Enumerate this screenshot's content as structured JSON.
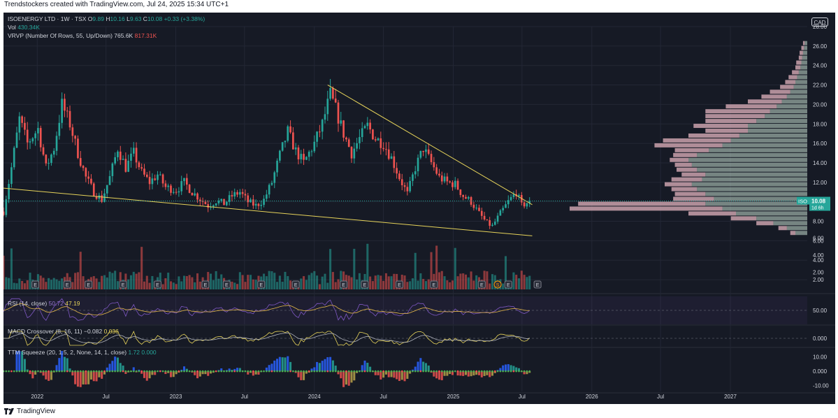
{
  "attribution": "Trendstockers created with TradingView.com, Jul 24, 2025 15:34 UTC+1",
  "footer": {
    "brand": "TradingView",
    "logo_icon": "tradingview-logo-icon"
  },
  "header": {
    "symbol": "ISOENERGY LTD · 1W · TSX",
    "open_label": "O",
    "open": "9.89",
    "high_label": "H",
    "high": "10.16",
    "low_label": "L",
    "low": "9.63",
    "close_label": "C",
    "close": "10.08",
    "change": "+0.33 (+3.38%)",
    "vol_label": "Vol",
    "vol": "430.34K",
    "vrvp_label": "VRVP (Number Of Rows, 55, Up/Down)",
    "vrvp_up": "765.6K",
    "vrvp_down": "817.31K",
    "rsi_label": "RSI (14, close)",
    "rsi_a": "50.72",
    "rsi_b": "47.19",
    "macd_label": "MACD Crossover (8, 16, 11)",
    "macd_a": "−0.082",
    "macd_b": "0.036",
    "ttm_label": "TTM Squeeze (20, 1.5, 2, None, 14, 1, close)",
    "ttm_a": "1.72",
    "ttm_b": "0.000"
  },
  "colors": {
    "background": "#161a25",
    "grid": "#232735",
    "up": "#26a69a",
    "down": "#ef5350",
    "trendline": "#e6d35a",
    "text": "#d1d4dc",
    "vp_up": "#c7dfd0",
    "vp_down": "#e3b4bf",
    "rsi": "#7e57c2",
    "rsi_ma": "#e6b94a",
    "macd": "#e6d35a",
    "macd_signal": "#b2b5be",
    "last_price": "#26a69a"
  },
  "currency": "CAD",
  "last_price": {
    "ticker": "ISO",
    "price": "10.08",
    "countdown": "1d 6h",
    "value": 10.08
  },
  "chart_data": {
    "type": "candlestick",
    "timeframe": "1W",
    "x_axis": {
      "range": [
        "2021-10-04",
        "2027-06-01"
      ],
      "ticks": [
        {
          "date": "2022-01-01",
          "label": "2022"
        },
        {
          "date": "2022-07-01",
          "label": "Jul"
        },
        {
          "date": "2023-01-01",
          "label": "2023"
        },
        {
          "date": "2023-07-01",
          "label": "Jul"
        },
        {
          "date": "2024-01-01",
          "label": "2024"
        },
        {
          "date": "2024-07-01",
          "label": "Jul"
        },
        {
          "date": "2025-01-01",
          "label": "2025"
        },
        {
          "date": "2025-07-01",
          "label": "Jul"
        },
        {
          "date": "2026-01-01",
          "label": "2026"
        },
        {
          "date": "2026-07-01",
          "label": "Jul"
        },
        {
          "date": "2027-01-01",
          "label": "2027"
        }
      ]
    },
    "price_axis": {
      "range": [
        1,
        28
      ],
      "ticks": [
        "2.00",
        "4.00",
        "6.00",
        "8.00",
        "10.00",
        "12.00",
        "14.00",
        "16.00",
        "18.00",
        "20.00",
        "22.00",
        "24.00",
        "26.00",
        "28.00"
      ]
    },
    "close_path": [
      [
        "2021-10-04",
        9.0
      ],
      [
        "2021-10-25",
        13.5
      ],
      [
        "2021-11-15",
        18.5
      ],
      [
        "2021-12-06",
        16.0
      ],
      [
        "2022-01-03",
        17.5
      ],
      [
        "2022-01-24",
        13.5
      ],
      [
        "2022-02-14",
        15.5
      ],
      [
        "2022-03-07",
        20.0
      ],
      [
        "2022-03-28",
        18.0
      ],
      [
        "2022-04-18",
        15.0
      ],
      [
        "2022-05-09",
        12.5
      ],
      [
        "2022-05-30",
        11.0
      ],
      [
        "2022-06-20",
        10.2
      ],
      [
        "2022-07-11",
        12.5
      ],
      [
        "2022-08-01",
        15.5
      ],
      [
        "2022-08-22",
        13.5
      ],
      [
        "2022-09-12",
        15.0
      ],
      [
        "2022-10-03",
        13.0
      ],
      [
        "2022-10-24",
        12.0
      ],
      [
        "2022-11-14",
        12.8
      ],
      [
        "2022-12-05",
        11.5
      ],
      [
        "2023-01-02",
        11.2
      ],
      [
        "2023-01-23",
        12.0
      ],
      [
        "2023-02-13",
        11.0
      ],
      [
        "2023-03-06",
        10.3
      ],
      [
        "2023-03-27",
        9.6
      ],
      [
        "2023-04-17",
        10.1
      ],
      [
        "2023-05-08",
        9.8
      ],
      [
        "2023-05-29",
        10.6
      ],
      [
        "2023-06-19",
        11.0
      ],
      [
        "2023-07-10",
        10.0
      ],
      [
        "2023-07-31",
        9.6
      ],
      [
        "2023-08-21",
        10.2
      ],
      [
        "2023-09-11",
        12.0
      ],
      [
        "2023-10-02",
        14.8
      ],
      [
        "2023-10-23",
        17.2
      ],
      [
        "2023-11-13",
        15.2
      ],
      [
        "2023-12-04",
        14.0
      ],
      [
        "2024-01-01",
        16.0
      ],
      [
        "2024-01-22",
        18.0
      ],
      [
        "2024-02-12",
        21.0
      ],
      [
        "2024-02-26",
        19.5
      ],
      [
        "2024-03-18",
        17.0
      ],
      [
        "2024-04-08",
        15.0
      ],
      [
        "2024-04-29",
        16.5
      ],
      [
        "2024-05-20",
        17.8
      ],
      [
        "2024-06-10",
        16.5
      ],
      [
        "2024-07-01",
        16.0
      ],
      [
        "2024-07-22",
        14.5
      ],
      [
        "2024-08-12",
        12.5
      ],
      [
        "2024-09-02",
        10.8
      ],
      [
        "2024-09-23",
        13.5
      ],
      [
        "2024-10-14",
        15.5
      ],
      [
        "2024-11-04",
        14.0
      ],
      [
        "2024-11-25",
        12.5
      ],
      [
        "2024-12-16",
        12.0
      ],
      [
        "2025-01-06",
        11.8
      ],
      [
        "2025-01-27",
        10.6
      ],
      [
        "2025-02-17",
        10.0
      ],
      [
        "2025-03-10",
        8.8
      ],
      [
        "2025-03-31",
        7.8
      ],
      [
        "2025-04-14",
        7.5
      ],
      [
        "2025-05-05",
        8.8
      ],
      [
        "2025-05-26",
        10.0
      ],
      [
        "2025-06-16",
        11.0
      ],
      [
        "2025-06-30",
        9.6
      ],
      [
        "2025-07-21",
        10.08
      ]
    ],
    "volume_profile": {
      "price_range": [
        6.5,
        26.5
      ],
      "rows": [
        {
          "price": 6.8,
          "up": 0.7,
          "down": 0.3
        },
        {
          "price": 7.3,
          "up": 1.2,
          "down": 0.5
        },
        {
          "price": 7.8,
          "up": 2.0,
          "down": 1.0
        },
        {
          "price": 8.3,
          "up": 3.0,
          "down": 1.5
        },
        {
          "price": 8.8,
          "up": 4.2,
          "down": 2.8
        },
        {
          "price": 9.3,
          "up": 5.0,
          "down": 9.0
        },
        {
          "price": 9.8,
          "up": 6.0,
          "down": 7.5
        },
        {
          "price": 10.3,
          "up": 5.5,
          "down": 2.4
        },
        {
          "price": 10.8,
          "up": 6.0,
          "down": 1.8
        },
        {
          "price": 11.3,
          "up": 6.5,
          "down": 1.5
        },
        {
          "price": 11.8,
          "up": 6.8,
          "down": 1.6
        },
        {
          "price": 12.3,
          "up": 6.2,
          "down": 1.8
        },
        {
          "price": 12.8,
          "up": 6.0,
          "down": 1.4
        },
        {
          "price": 13.3,
          "up": 6.5,
          "down": 1.2
        },
        {
          "price": 13.8,
          "up": 6.8,
          "down": 1.0
        },
        {
          "price": 14.3,
          "up": 7.0,
          "down": 1.1
        },
        {
          "price": 14.8,
          "up": 6.5,
          "down": 1.4
        },
        {
          "price": 15.3,
          "up": 5.8,
          "down": 2.0
        },
        {
          "price": 15.8,
          "up": 5.0,
          "down": 4.0
        },
        {
          "price": 16.3,
          "up": 4.5,
          "down": 4.0
        },
        {
          "price": 16.8,
          "up": 4.0,
          "down": 3.0
        },
        {
          "price": 17.3,
          "up": 3.5,
          "down": 2.5
        },
        {
          "price": 17.8,
          "up": 3.5,
          "down": 3.2
        },
        {
          "price": 18.3,
          "up": 3.0,
          "down": 3.0
        },
        {
          "price": 18.8,
          "up": 2.5,
          "down": 3.5
        },
        {
          "price": 19.3,
          "up": 2.2,
          "down": 3.8
        },
        {
          "price": 19.8,
          "up": 1.8,
          "down": 3.0
        },
        {
          "price": 20.3,
          "up": 1.5,
          "down": 2.0
        },
        {
          "price": 20.8,
          "up": 1.2,
          "down": 1.5
        },
        {
          "price": 21.3,
          "up": 1.0,
          "down": 1.2
        },
        {
          "price": 21.8,
          "up": 0.8,
          "down": 0.8
        },
        {
          "price": 22.3,
          "up": 0.7,
          "down": 0.6
        },
        {
          "price": 22.8,
          "up": 0.6,
          "down": 0.5
        },
        {
          "price": 23.3,
          "up": 0.5,
          "down": 0.4
        },
        {
          "price": 23.8,
          "up": 0.4,
          "down": 0.3
        },
        {
          "price": 24.3,
          "up": 0.35,
          "down": 0.3
        },
        {
          "price": 24.8,
          "up": 0.3,
          "down": 0.2
        },
        {
          "price": 25.3,
          "up": 0.25,
          "down": 0.2
        },
        {
          "price": 25.8,
          "up": 0.2,
          "down": 0.15
        },
        {
          "price": 26.3,
          "up": 0.15,
          "down": 0.1
        }
      ]
    },
    "trendlines": [
      {
        "name": "descending-resistance",
        "from": [
          "2024-02-05",
          22.0
        ],
        "to": [
          "2025-07-28",
          9.7
        ]
      },
      {
        "name": "descending-support",
        "from": [
          "2021-10-04",
          11.4
        ],
        "to": [
          "2025-07-28",
          6.5
        ]
      }
    ],
    "events": [
      {
        "date": "2021-12-27",
        "label": "E"
      },
      {
        "date": "2022-03-21",
        "label": "E"
      },
      {
        "date": "2022-05-16",
        "label": "E"
      },
      {
        "date": "2022-08-15",
        "label": "E"
      },
      {
        "date": "2022-11-14",
        "label": "E"
      },
      {
        "date": "2023-03-20",
        "label": "E"
      },
      {
        "date": "2023-05-15",
        "label": "E"
      },
      {
        "date": "2023-08-14",
        "label": "E"
      },
      {
        "date": "2023-11-13",
        "label": "E"
      },
      {
        "date": "2024-03-18",
        "label": "E"
      },
      {
        "date": "2024-05-13",
        "label": "E"
      },
      {
        "date": "2024-08-12",
        "label": "E"
      },
      {
        "date": "2024-11-11",
        "label": "E"
      },
      {
        "date": "2025-03-17",
        "label": "E"
      },
      {
        "date": "2025-04-28",
        "label": "S"
      },
      {
        "date": "2025-05-26",
        "label": "E"
      },
      {
        "date": "2025-08-11",
        "label": "E"
      }
    ],
    "volume": {
      "ticks": [
        "2.00",
        "4.00",
        "6.00"
      ],
      "range": [
        0,
        7.5
      ]
    },
    "rsi": {
      "ticks": [
        "50.00"
      ],
      "range": [
        20,
        80
      ],
      "value": 47.19
    },
    "macd": {
      "ticks": [
        "0.000"
      ],
      "value": -0.082,
      "signal": 0.036
    },
    "ttm_squeeze": {
      "ticks": [
        "10.00",
        "0.000",
        "-10.00"
      ],
      "range": [
        -14,
        16
      ],
      "value": 1.72
    }
  }
}
